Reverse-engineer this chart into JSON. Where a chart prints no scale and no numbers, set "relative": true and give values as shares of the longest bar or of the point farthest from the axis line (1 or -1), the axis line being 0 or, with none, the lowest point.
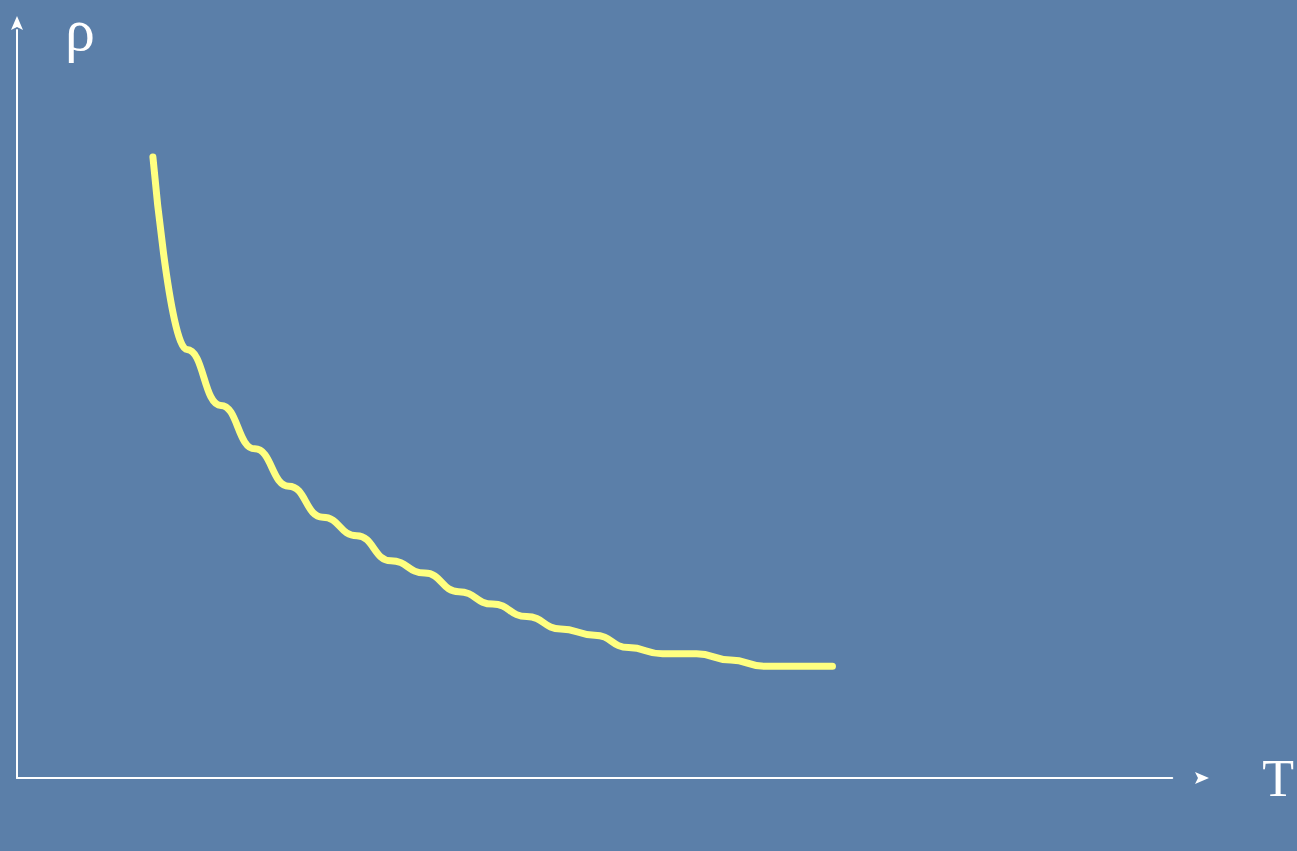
{
  "chart_data": {
    "type": "line",
    "xlabel": "T",
    "ylabel": "ρ",
    "relative": true,
    "grid": false,
    "marker": "none",
    "line_style": "solid",
    "categories": [
      null,
      null,
      null,
      null,
      null,
      null,
      null,
      null,
      null,
      null,
      null,
      null,
      null,
      null,
      null,
      null,
      null,
      null,
      null,
      null,
      null,
      null,
      null,
      null,
      null,
      null,
      null,
      null,
      null,
      null,
      null,
      null,
      null,
      null,
      null
    ],
    "series": [
      {
        "color": "#ffff80",
        "values": [
          null,
          null,
          null,
          null,
          1.0,
          0.69,
          0.6,
          0.53,
          0.47,
          0.42,
          0.39,
          0.35,
          0.33,
          0.3,
          0.28,
          0.26,
          0.24,
          0.23,
          0.21,
          0.2,
          0.2,
          0.19,
          0.18,
          0.18,
          0.18,
          null,
          null,
          null,
          null,
          null,
          null,
          null,
          null,
          null,
          null
        ]
      }
    ]
  }
}
